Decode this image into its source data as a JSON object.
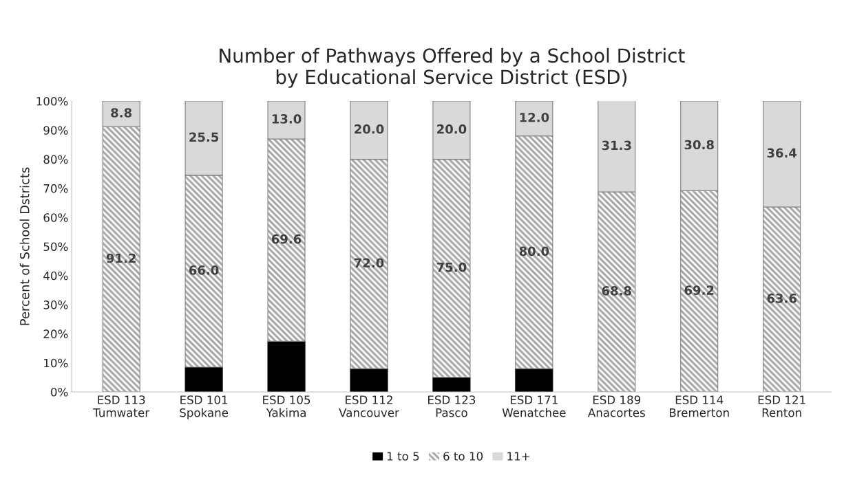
{
  "chart_data": {
    "type": "bar",
    "stacked": true,
    "title": "Number of Pathways Offered by a School District\nby Educational Service District (ESD)",
    "ylabel": "Percent of School Dstricts",
    "categories": [
      "ESD 113\nTumwater",
      "ESD 101\nSpokane",
      "ESD 105\nYakima",
      "ESD 112\nVancouver",
      "ESD 123\nPasco",
      "ESD 171\nWenatchee",
      "ESD 189\nAnacortes",
      "ESD 114\nBremerton",
      "ESD 121\nRenton"
    ],
    "series": [
      {
        "name": "1 to 5",
        "color": "#000000",
        "values": [
          0,
          8.5,
          17.4,
          8.0,
          5.0,
          8.0,
          0,
          0,
          0
        ],
        "value_labels": [
          null,
          null,
          null,
          null,
          null,
          null,
          null,
          null,
          null
        ]
      },
      {
        "name": "6 to 10",
        "color": "#a6a6a6",
        "values": [
          91.2,
          66.0,
          69.6,
          72.0,
          75.0,
          80.0,
          68.8,
          69.2,
          63.6
        ],
        "value_labels": [
          "91.2",
          "66.0",
          "69.6",
          "72.0",
          "75.0",
          "80.0",
          "68.8",
          "69.2",
          "63.6"
        ]
      },
      {
        "name": "11+",
        "color": "#d9d9d9",
        "values": [
          8.8,
          25.5,
          13.0,
          20.0,
          20.0,
          12.0,
          31.3,
          30.8,
          36.4
        ],
        "value_labels": [
          "8.8",
          "25.5",
          "13.0",
          "20.0",
          "20.0",
          "12.0",
          "31.3",
          "30.8",
          "36.4"
        ]
      }
    ],
    "ylim": [
      0,
      100
    ],
    "yticks": [
      {
        "value": 0,
        "label": "0%"
      },
      {
        "value": 10,
        "label": "10%"
      },
      {
        "value": 20,
        "label": "20%"
      },
      {
        "value": 30,
        "label": "30%"
      },
      {
        "value": 40,
        "label": "40%"
      },
      {
        "value": 50,
        "label": "50%"
      },
      {
        "value": 60,
        "label": "60%"
      },
      {
        "value": 70,
        "label": "70%"
      },
      {
        "value": 80,
        "label": "80%"
      },
      {
        "value": 90,
        "label": "90%"
      },
      {
        "value": 100,
        "label": "100%"
      }
    ],
    "legend": "bottom"
  }
}
